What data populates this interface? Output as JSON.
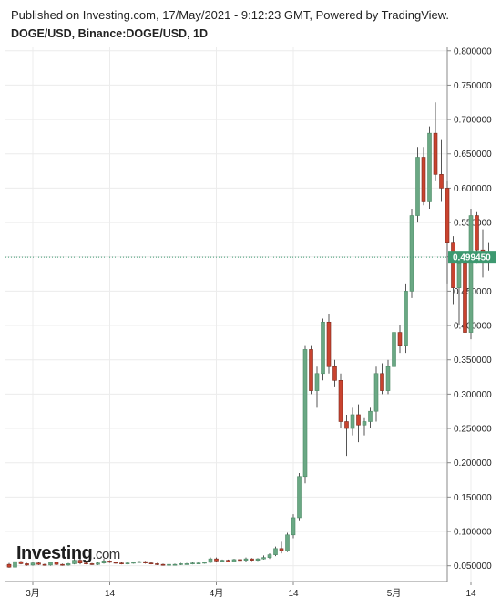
{
  "header": {
    "published": "Published on Investing.com, 17/May/2021 - 9:12:23 GMT, Powered by TradingView.",
    "symbol": "DOGE/USD, Binance:DOGE/USD, 1D"
  },
  "logo": {
    "name": "Investing",
    "suffix": ".com"
  },
  "colors": {
    "up": "#6aa884",
    "down": "#c9432f",
    "grid": "#ececec",
    "price_line": "#3d9970",
    "axis": "#888888"
  },
  "chart_data": {
    "type": "candlestick",
    "title": "DOGE/USD, Binance:DOGE/USD, 1D",
    "ylim": [
      0.027,
      0.805
    ],
    "y_ticks": [
      0.05,
      0.1,
      0.15,
      0.2,
      0.25,
      0.3,
      0.35,
      0.4,
      0.45,
      0.5,
      0.55,
      0.6,
      0.65,
      0.7,
      0.75,
      0.8
    ],
    "y_tick_labels": [
      "0.050000",
      "0.100000",
      "0.150000",
      "0.200000",
      "0.250000",
      "0.300000",
      "0.350000",
      "0.400000",
      "0.450000",
      "0.500000",
      "0.550000",
      "0.600000",
      "0.650000",
      "0.700000",
      "0.750000",
      "0.800000"
    ],
    "x_ticks": [
      {
        "index": 4,
        "label": "3月"
      },
      {
        "index": 17,
        "label": "14"
      },
      {
        "index": 35,
        "label": "4月"
      },
      {
        "index": 48,
        "label": "14"
      },
      {
        "index": 65,
        "label": "5月"
      },
      {
        "index": 78,
        "label": "14"
      }
    ],
    "last_price": 0.49945,
    "last_price_label": "0.499450",
    "candles": [
      [
        0.052,
        0.054,
        0.047,
        0.048
      ],
      [
        0.048,
        0.058,
        0.047,
        0.056
      ],
      [
        0.056,
        0.057,
        0.052,
        0.053
      ],
      [
        0.053,
        0.054,
        0.05,
        0.051
      ],
      [
        0.051,
        0.056,
        0.05,
        0.054
      ],
      [
        0.054,
        0.055,
        0.051,
        0.052
      ],
      [
        0.052,
        0.053,
        0.05,
        0.051
      ],
      [
        0.051,
        0.056,
        0.05,
        0.055
      ],
      [
        0.055,
        0.056,
        0.051,
        0.052
      ],
      [
        0.052,
        0.053,
        0.05,
        0.051
      ],
      [
        0.051,
        0.054,
        0.05,
        0.053
      ],
      [
        0.053,
        0.06,
        0.052,
        0.058
      ],
      [
        0.058,
        0.062,
        0.052,
        0.054
      ],
      [
        0.054,
        0.055,
        0.052,
        0.053
      ],
      [
        0.053,
        0.054,
        0.051,
        0.052
      ],
      [
        0.052,
        0.055,
        0.051,
        0.054
      ],
      [
        0.054,
        0.06,
        0.053,
        0.057
      ],
      [
        0.057,
        0.058,
        0.054,
        0.055
      ],
      [
        0.055,
        0.056,
        0.053,
        0.054
      ],
      [
        0.054,
        0.055,
        0.052,
        0.053
      ],
      [
        0.053,
        0.055,
        0.052,
        0.054
      ],
      [
        0.054,
        0.056,
        0.053,
        0.055
      ],
      [
        0.055,
        0.057,
        0.054,
        0.056
      ],
      [
        0.056,
        0.057,
        0.053,
        0.054
      ],
      [
        0.054,
        0.055,
        0.052,
        0.053
      ],
      [
        0.053,
        0.054,
        0.051,
        0.052
      ],
      [
        0.052,
        0.053,
        0.05,
        0.051
      ],
      [
        0.051,
        0.053,
        0.05,
        0.052
      ],
      [
        0.052,
        0.053,
        0.051,
        0.052
      ],
      [
        0.052,
        0.054,
        0.051,
        0.053
      ],
      [
        0.053,
        0.054,
        0.052,
        0.053
      ],
      [
        0.053,
        0.055,
        0.052,
        0.054
      ],
      [
        0.054,
        0.055,
        0.053,
        0.054
      ],
      [
        0.054,
        0.056,
        0.053,
        0.055
      ],
      [
        0.055,
        0.062,
        0.054,
        0.06
      ],
      [
        0.06,
        0.062,
        0.055,
        0.057
      ],
      [
        0.057,
        0.059,
        0.055,
        0.058
      ],
      [
        0.058,
        0.059,
        0.055,
        0.056
      ],
      [
        0.056,
        0.06,
        0.055,
        0.059
      ],
      [
        0.059,
        0.062,
        0.056,
        0.058
      ],
      [
        0.058,
        0.062,
        0.056,
        0.06
      ],
      [
        0.06,
        0.061,
        0.057,
        0.058
      ],
      [
        0.058,
        0.061,
        0.057,
        0.06
      ],
      [
        0.06,
        0.065,
        0.059,
        0.062
      ],
      [
        0.062,
        0.068,
        0.06,
        0.066
      ],
      [
        0.066,
        0.078,
        0.064,
        0.075
      ],
      [
        0.075,
        0.085,
        0.068,
        0.072
      ],
      [
        0.072,
        0.098,
        0.07,
        0.095
      ],
      [
        0.095,
        0.125,
        0.09,
        0.12
      ],
      [
        0.12,
        0.185,
        0.115,
        0.18
      ],
      [
        0.18,
        0.37,
        0.17,
        0.365
      ],
      [
        0.365,
        0.37,
        0.3,
        0.305
      ],
      [
        0.305,
        0.34,
        0.28,
        0.33
      ],
      [
        0.33,
        0.41,
        0.32,
        0.405
      ],
      [
        0.405,
        0.417,
        0.33,
        0.34
      ],
      [
        0.34,
        0.35,
        0.31,
        0.32
      ],
      [
        0.32,
        0.33,
        0.25,
        0.26
      ],
      [
        0.26,
        0.27,
        0.21,
        0.25
      ],
      [
        0.25,
        0.28,
        0.24,
        0.27
      ],
      [
        0.27,
        0.285,
        0.23,
        0.255
      ],
      [
        0.255,
        0.265,
        0.24,
        0.26
      ],
      [
        0.26,
        0.28,
        0.25,
        0.275
      ],
      [
        0.275,
        0.34,
        0.26,
        0.33
      ],
      [
        0.33,
        0.345,
        0.3,
        0.305
      ],
      [
        0.305,
        0.35,
        0.3,
        0.34
      ],
      [
        0.34,
        0.395,
        0.33,
        0.39
      ],
      [
        0.39,
        0.4,
        0.36,
        0.37
      ],
      [
        0.37,
        0.46,
        0.36,
        0.45
      ],
      [
        0.45,
        0.57,
        0.44,
        0.56
      ],
      [
        0.56,
        0.66,
        0.55,
        0.645
      ],
      [
        0.645,
        0.66,
        0.575,
        0.58
      ],
      [
        0.58,
        0.69,
        0.57,
        0.68
      ],
      [
        0.68,
        0.725,
        0.61,
        0.62
      ],
      [
        0.62,
        0.67,
        0.58,
        0.6
      ],
      [
        0.6,
        0.61,
        0.46,
        0.52
      ],
      [
        0.52,
        0.53,
        0.43,
        0.455
      ],
      [
        0.455,
        0.5,
        0.4,
        0.49
      ],
      [
        0.49,
        0.5,
        0.38,
        0.39
      ],
      [
        0.39,
        0.57,
        0.38,
        0.56
      ],
      [
        0.56,
        0.565,
        0.49,
        0.51
      ],
      [
        0.51,
        0.54,
        0.47,
        0.5
      ],
      [
        0.5,
        0.52,
        0.48,
        0.499
      ]
    ]
  }
}
